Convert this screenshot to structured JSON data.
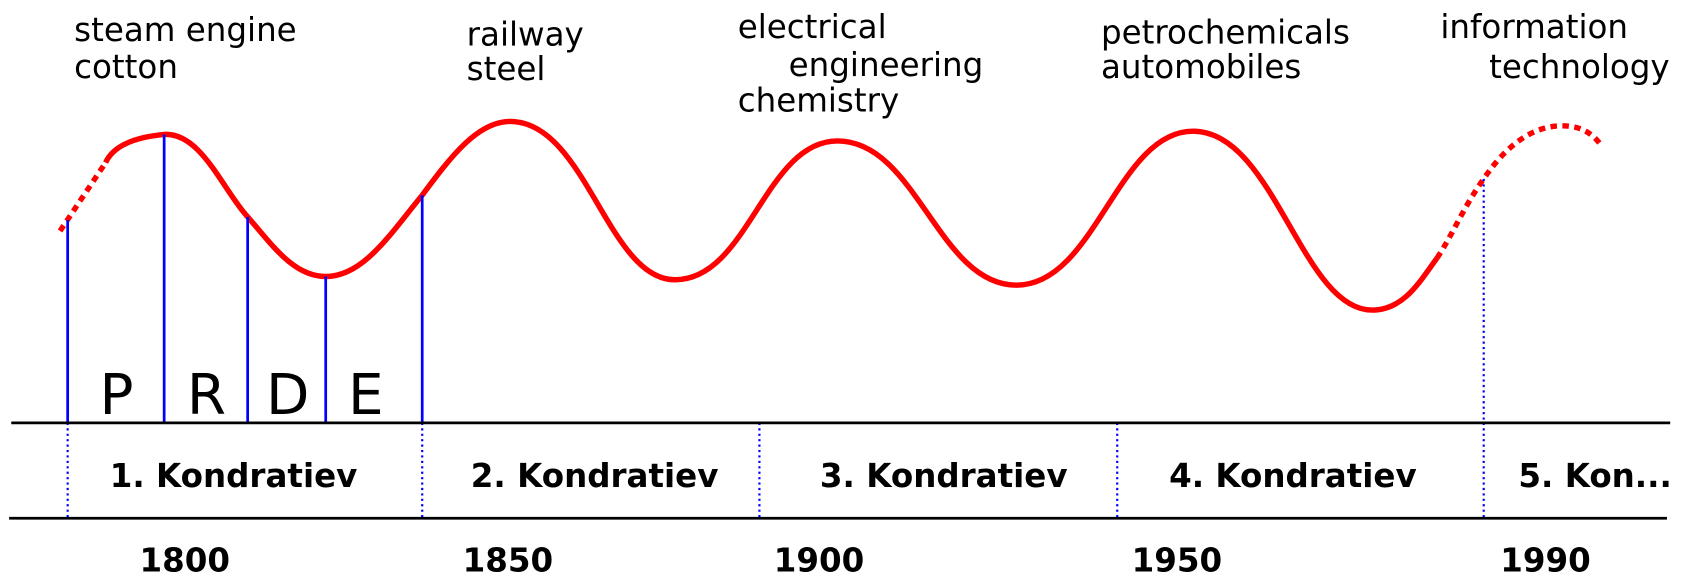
{
  "innovations": [
    [
      "steam engine",
      "cotton"
    ],
    [
      "railway",
      "steel"
    ],
    [
      "electrical",
      "engineering",
      "chemistry"
    ],
    [
      "petrochemicals",
      "automobiles"
    ],
    [
      "information",
      "technology"
    ]
  ],
  "phases": [
    "P",
    "R",
    "D",
    "E"
  ],
  "waves": [
    "1. Kondratiev",
    "2. Kondratiev",
    "3. Kondratiev",
    "4. Kondratiev",
    "5. Kon..."
  ],
  "years": [
    "1800",
    "1850",
    "1900",
    "1950",
    "1990"
  ]
}
